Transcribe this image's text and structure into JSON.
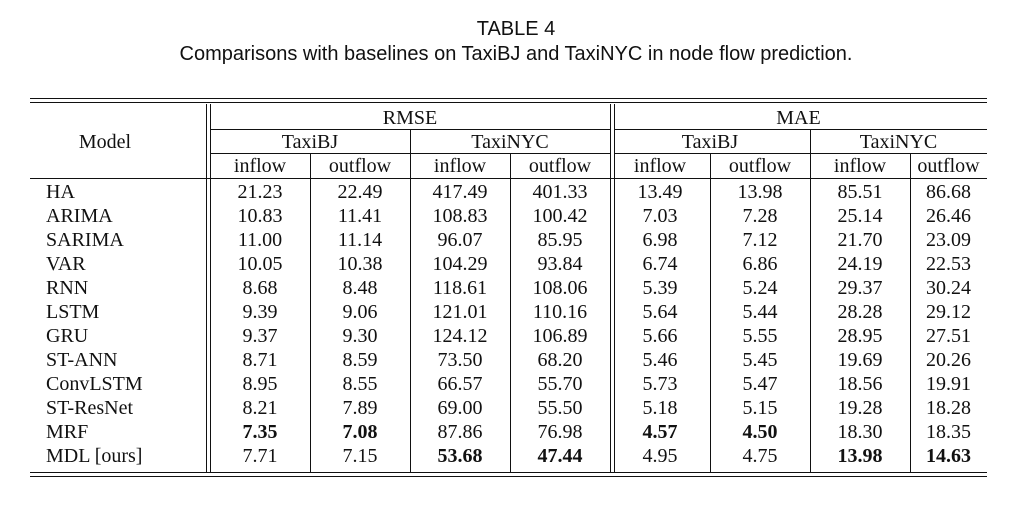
{
  "caption": {
    "label": "TABLE 4",
    "text": "Comparisons with baselines on TaxiBJ and TaxiNYC in node flow prediction."
  },
  "header": {
    "model": "Model",
    "groups": [
      "RMSE",
      "MAE"
    ],
    "datasets": [
      "TaxiBJ",
      "TaxiNYC",
      "TaxiBJ",
      "TaxiNYC"
    ],
    "flows": [
      "inflow",
      "outflow",
      "inflow",
      "outflow",
      "inflow",
      "outflow",
      "inflow",
      "outflow"
    ]
  },
  "rows": [
    {
      "model": "HA",
      "values": [
        "21.23",
        "22.49",
        "417.49",
        "401.33",
        "13.49",
        "13.98",
        "85.51",
        "86.68"
      ],
      "bold": []
    },
    {
      "model": "ARIMA",
      "values": [
        "10.83",
        "11.41",
        "108.83",
        "100.42",
        "7.03",
        "7.28",
        "25.14",
        "26.46"
      ],
      "bold": []
    },
    {
      "model": "SARIMA",
      "values": [
        "11.00",
        "11.14",
        "96.07",
        "85.95",
        "6.98",
        "7.12",
        "21.70",
        "23.09"
      ],
      "bold": []
    },
    {
      "model": "VAR",
      "values": [
        "10.05",
        "10.38",
        "104.29",
        "93.84",
        "6.74",
        "6.86",
        "24.19",
        "22.53"
      ],
      "bold": []
    },
    {
      "model": "RNN",
      "values": [
        "8.68",
        "8.48",
        "118.61",
        "108.06",
        "5.39",
        "5.24",
        "29.37",
        "30.24"
      ],
      "bold": []
    },
    {
      "model": "LSTM",
      "values": [
        "9.39",
        "9.06",
        "121.01",
        "110.16",
        "5.64",
        "5.44",
        "28.28",
        "29.12"
      ],
      "bold": []
    },
    {
      "model": "GRU",
      "values": [
        "9.37",
        "9.30",
        "124.12",
        "106.89",
        "5.66",
        "5.55",
        "28.95",
        "27.51"
      ],
      "bold": []
    },
    {
      "model": "ST-ANN",
      "values": [
        "8.71",
        "8.59",
        "73.50",
        "68.20",
        "5.46",
        "5.45",
        "19.69",
        "20.26"
      ],
      "bold": []
    },
    {
      "model": "ConvLSTM",
      "values": [
        "8.95",
        "8.55",
        "66.57",
        "55.70",
        "5.73",
        "5.47",
        "18.56",
        "19.91"
      ],
      "bold": []
    },
    {
      "model": "ST-ResNet",
      "values": [
        "8.21",
        "7.89",
        "69.00",
        "55.50",
        "5.18",
        "5.15",
        "19.28",
        "18.28"
      ],
      "bold": []
    },
    {
      "model": "MRF",
      "values": [
        "7.35",
        "7.08",
        "87.86",
        "76.98",
        "4.57",
        "4.50",
        "18.30",
        "18.35"
      ],
      "bold": [
        0,
        1,
        4,
        5
      ]
    },
    {
      "model": "MDL [ours]",
      "values": [
        "7.71",
        "7.15",
        "53.68",
        "47.44",
        "4.95",
        "4.75",
        "13.98",
        "14.63"
      ],
      "bold": [
        2,
        3,
        6,
        7
      ]
    }
  ]
}
